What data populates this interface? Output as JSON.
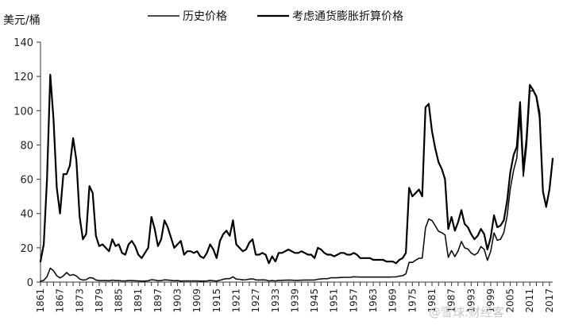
{
  "chart_data": {
    "type": "line",
    "ylabel": "美元/桶",
    "ylim": [
      0,
      140
    ],
    "yticks": [
      0,
      20,
      40,
      60,
      80,
      100,
      120,
      140
    ],
    "xlim": [
      1861,
      2018
    ],
    "xticks": [
      1861,
      1867,
      1873,
      1879,
      1885,
      1891,
      1897,
      1903,
      1909,
      1915,
      1921,
      1927,
      1933,
      1939,
      1945,
      1951,
      1957,
      1963,
      1969,
      1975,
      1981,
      1987,
      1993,
      1999,
      2005,
      2011,
      2017
    ],
    "grid": false,
    "legend_position": "top-center",
    "series": [
      {
        "name": "历史价格",
        "color": "#111111",
        "stroke": 1.6,
        "points": [
          [
            1861,
            0.5
          ],
          [
            1862,
            1.0
          ],
          [
            1863,
            3.2
          ],
          [
            1864,
            8.1
          ],
          [
            1865,
            6.6
          ],
          [
            1866,
            3.7
          ],
          [
            1867,
            2.4
          ],
          [
            1868,
            3.6
          ],
          [
            1869,
            5.6
          ],
          [
            1870,
            3.9
          ],
          [
            1871,
            4.4
          ],
          [
            1872,
            3.6
          ],
          [
            1873,
            1.8
          ],
          [
            1874,
            1.2
          ],
          [
            1875,
            1.4
          ],
          [
            1876,
            2.6
          ],
          [
            1877,
            2.4
          ],
          [
            1878,
            1.2
          ],
          [
            1879,
            0.9
          ],
          [
            1880,
            0.9
          ],
          [
            1881,
            0.9
          ],
          [
            1882,
            0.8
          ],
          [
            1883,
            1.1
          ],
          [
            1884,
            0.9
          ],
          [
            1885,
            0.9
          ],
          [
            1886,
            0.7
          ],
          [
            1887,
            0.7
          ],
          [
            1888,
            0.9
          ],
          [
            1889,
            0.9
          ],
          [
            1890,
            0.8
          ],
          [
            1891,
            0.7
          ],
          [
            1892,
            0.6
          ],
          [
            1893,
            0.6
          ],
          [
            1894,
            0.8
          ],
          [
            1895,
            1.4
          ],
          [
            1896,
            1.2
          ],
          [
            1897,
            0.8
          ],
          [
            1898,
            0.9
          ],
          [
            1899,
            1.3
          ],
          [
            1900,
            1.2
          ],
          [
            1901,
            1.0
          ],
          [
            1902,
            0.8
          ],
          [
            1903,
            0.9
          ],
          [
            1904,
            0.6
          ],
          [
            1905,
            0.7
          ],
          [
            1906,
            0.7
          ],
          [
            1907,
            0.7
          ],
          [
            1908,
            0.7
          ],
          [
            1909,
            0.7
          ],
          [
            1910,
            0.6
          ],
          [
            1911,
            0.6
          ],
          [
            1912,
            0.7
          ],
          [
            1913,
            1.0
          ],
          [
            1914,
            0.8
          ],
          [
            1915,
            0.6
          ],
          [
            1916,
            1.1
          ],
          [
            1917,
            1.6
          ],
          [
            1918,
            2.0
          ],
          [
            1919,
            2.0
          ],
          [
            1920,
            3.1
          ],
          [
            1921,
            1.7
          ],
          [
            1922,
            1.6
          ],
          [
            1923,
            1.3
          ],
          [
            1924,
            1.4
          ],
          [
            1925,
            1.7
          ],
          [
            1926,
            1.9
          ],
          [
            1927,
            1.3
          ],
          [
            1928,
            1.2
          ],
          [
            1929,
            1.3
          ],
          [
            1930,
            1.2
          ],
          [
            1931,
            0.7
          ],
          [
            1932,
            0.9
          ],
          [
            1933,
            0.7
          ],
          [
            1934,
            1.0
          ],
          [
            1935,
            1.0
          ],
          [
            1936,
            1.1
          ],
          [
            1937,
            1.2
          ],
          [
            1938,
            1.1
          ],
          [
            1939,
            1.0
          ],
          [
            1940,
            1.0
          ],
          [
            1941,
            1.1
          ],
          [
            1942,
            1.2
          ],
          [
            1943,
            1.2
          ],
          [
            1944,
            1.2
          ],
          [
            1945,
            1.2
          ],
          [
            1946,
            1.6
          ],
          [
            1947,
            1.9
          ],
          [
            1948,
            2.0
          ],
          [
            1949,
            2.0
          ],
          [
            1950,
            2.5
          ],
          [
            1951,
            2.5
          ],
          [
            1952,
            2.5
          ],
          [
            1953,
            2.7
          ],
          [
            1954,
            2.8
          ],
          [
            1955,
            2.8
          ],
          [
            1956,
            2.8
          ],
          [
            1957,
            3.1
          ],
          [
            1958,
            3.0
          ],
          [
            1959,
            2.9
          ],
          [
            1960,
            2.9
          ],
          [
            1961,
            2.9
          ],
          [
            1962,
            2.9
          ],
          [
            1963,
            2.9
          ],
          [
            1964,
            2.9
          ],
          [
            1965,
            2.9
          ],
          [
            1966,
            2.9
          ],
          [
            1967,
            2.9
          ],
          [
            1968,
            2.9
          ],
          [
            1969,
            3.0
          ],
          [
            1970,
            3.0
          ],
          [
            1971,
            3.5
          ],
          [
            1972,
            3.7
          ],
          [
            1973,
            4.8
          ],
          [
            1974,
            11.5
          ],
          [
            1975,
            11.5
          ],
          [
            1976,
            12.8
          ],
          [
            1977,
            13.9
          ],
          [
            1978,
            14.0
          ],
          [
            1979,
            31.6
          ],
          [
            1980,
            36.8
          ],
          [
            1981,
            35.9
          ],
          [
            1982,
            32.9
          ],
          [
            1983,
            29.6
          ],
          [
            1984,
            28.8
          ],
          [
            1985,
            27.6
          ],
          [
            1986,
            14.4
          ],
          [
            1987,
            18.4
          ],
          [
            1988,
            14.9
          ],
          [
            1989,
            18.2
          ],
          [
            1990,
            23.7
          ],
          [
            1991,
            20.0
          ],
          [
            1992,
            19.3
          ],
          [
            1993,
            17.0
          ],
          [
            1994,
            15.8
          ],
          [
            1995,
            17.0
          ],
          [
            1996,
            20.7
          ],
          [
            1997,
            19.1
          ],
          [
            1998,
            12.7
          ],
          [
            1999,
            17.9
          ],
          [
            2000,
            28.7
          ],
          [
            2001,
            24.4
          ],
          [
            2002,
            25.0
          ],
          [
            2003,
            28.8
          ],
          [
            2004,
            38.3
          ],
          [
            2005,
            54.5
          ],
          [
            2006,
            65.1
          ],
          [
            2007,
            72.4
          ],
          [
            2008,
            97.0
          ],
          [
            2009,
            61.7
          ],
          [
            2010,
            79.6
          ],
          [
            2011,
            111.3
          ],
          [
            2012,
            111.7
          ],
          [
            2013,
            108.7
          ],
          [
            2014,
            99.0
          ],
          [
            2015,
            52.4
          ],
          [
            2016,
            43.7
          ],
          [
            2017,
            54.2
          ],
          [
            2018,
            71.3
          ]
        ]
      },
      {
        "name": "考虑通货膨胀折算价格",
        "color": "#000000",
        "stroke": 2.2,
        "points": [
          [
            1861,
            12
          ],
          [
            1862,
            22
          ],
          [
            1863,
            60
          ],
          [
            1864,
            121
          ],
          [
            1865,
            95
          ],
          [
            1866,
            55
          ],
          [
            1867,
            40
          ],
          [
            1868,
            63
          ],
          [
            1869,
            63
          ],
          [
            1870,
            68
          ],
          [
            1871,
            84
          ],
          [
            1872,
            71
          ],
          [
            1873,
            38
          ],
          [
            1874,
            25
          ],
          [
            1875,
            28
          ],
          [
            1876,
            56
          ],
          [
            1877,
            52
          ],
          [
            1878,
            27
          ],
          [
            1879,
            21
          ],
          [
            1880,
            22
          ],
          [
            1881,
            20
          ],
          [
            1882,
            18
          ],
          [
            1883,
            25
          ],
          [
            1884,
            21
          ],
          [
            1885,
            22
          ],
          [
            1886,
            17
          ],
          [
            1887,
            16
          ],
          [
            1888,
            22
          ],
          [
            1889,
            24
          ],
          [
            1890,
            21
          ],
          [
            1891,
            16
          ],
          [
            1892,
            14
          ],
          [
            1893,
            17
          ],
          [
            1894,
            20
          ],
          [
            1895,
            38
          ],
          [
            1896,
            31
          ],
          [
            1897,
            21
          ],
          [
            1898,
            25
          ],
          [
            1899,
            36
          ],
          [
            1900,
            32
          ],
          [
            1901,
            26
          ],
          [
            1902,
            20
          ],
          [
            1903,
            22
          ],
          [
            1904,
            24
          ],
          [
            1905,
            16
          ],
          [
            1906,
            18
          ],
          [
            1907,
            18
          ],
          [
            1908,
            17
          ],
          [
            1909,
            18
          ],
          [
            1910,
            15
          ],
          [
            1911,
            14
          ],
          [
            1912,
            17
          ],
          [
            1913,
            22
          ],
          [
            1914,
            19
          ],
          [
            1915,
            14
          ],
          [
            1916,
            24
          ],
          [
            1917,
            28
          ],
          [
            1918,
            30
          ],
          [
            1919,
            27
          ],
          [
            1920,
            36
          ],
          [
            1921,
            22
          ],
          [
            1922,
            20
          ],
          [
            1923,
            18
          ],
          [
            1924,
            19
          ],
          [
            1925,
            23
          ],
          [
            1926,
            25
          ],
          [
            1927,
            16
          ],
          [
            1928,
            16
          ],
          [
            1929,
            17
          ],
          [
            1930,
            16
          ],
          [
            1931,
            11
          ],
          [
            1932,
            15
          ],
          [
            1933,
            12
          ],
          [
            1934,
            17
          ],
          [
            1935,
            17
          ],
          [
            1936,
            18
          ],
          [
            1937,
            19
          ],
          [
            1938,
            18
          ],
          [
            1939,
            17
          ],
          [
            1940,
            17
          ],
          [
            1941,
            18
          ],
          [
            1942,
            17
          ],
          [
            1943,
            16
          ],
          [
            1944,
            16
          ],
          [
            1945,
            14
          ],
          [
            1946,
            20
          ],
          [
            1947,
            19
          ],
          [
            1948,
            17
          ],
          [
            1949,
            16
          ],
          [
            1950,
            16
          ],
          [
            1951,
            15
          ],
          [
            1952,
            16
          ],
          [
            1953,
            17
          ],
          [
            1954,
            17
          ],
          [
            1955,
            16
          ],
          [
            1956,
            16
          ],
          [
            1957,
            17
          ],
          [
            1958,
            16
          ],
          [
            1959,
            14
          ],
          [
            1960,
            14
          ],
          [
            1961,
            14
          ],
          [
            1962,
            14
          ],
          [
            1963,
            13
          ],
          [
            1964,
            13
          ],
          [
            1965,
            13
          ],
          [
            1966,
            13
          ],
          [
            1967,
            12
          ],
          [
            1968,
            12
          ],
          [
            1969,
            12
          ],
          [
            1970,
            11
          ],
          [
            1971,
            13
          ],
          [
            1972,
            14
          ],
          [
            1973,
            17
          ],
          [
            1974,
            55
          ],
          [
            1975,
            50
          ],
          [
            1976,
            52
          ],
          [
            1977,
            54
          ],
          [
            1978,
            50
          ],
          [
            1979,
            102
          ],
          [
            1980,
            104
          ],
          [
            1981,
            88
          ],
          [
            1982,
            78
          ],
          [
            1983,
            70
          ],
          [
            1984,
            66
          ],
          [
            1985,
            60
          ],
          [
            1986,
            31
          ],
          [
            1987,
            38
          ],
          [
            1988,
            30
          ],
          [
            1989,
            35
          ],
          [
            1990,
            42
          ],
          [
            1991,
            34
          ],
          [
            1992,
            32
          ],
          [
            1993,
            28
          ],
          [
            1994,
            25
          ],
          [
            1995,
            27
          ],
          [
            1996,
            31
          ],
          [
            1997,
            28
          ],
          [
            1998,
            19
          ],
          [
            1999,
            26
          ],
          [
            2000,
            39
          ],
          [
            2001,
            32
          ],
          [
            2002,
            33
          ],
          [
            2003,
            36
          ],
          [
            2004,
            47
          ],
          [
            2005,
            64
          ],
          [
            2006,
            74
          ],
          [
            2007,
            79
          ],
          [
            2008,
            105
          ],
          [
            2009,
            65
          ],
          [
            2010,
            84
          ],
          [
            2011,
            115
          ],
          [
            2012,
            112
          ],
          [
            2013,
            108
          ],
          [
            2014,
            96
          ],
          [
            2015,
            53
          ],
          [
            2016,
            44
          ],
          [
            2017,
            54
          ],
          [
            2018,
            72
          ]
        ]
      }
    ]
  },
  "watermark": {
    "text": "@雪球:财经客"
  }
}
